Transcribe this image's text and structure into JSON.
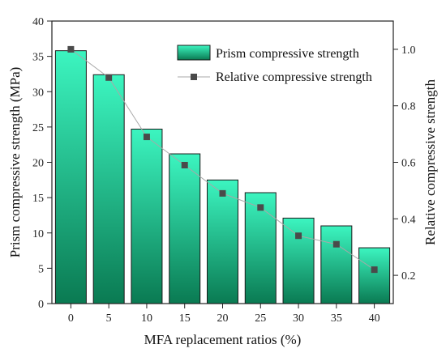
{
  "chart_data": {
    "type": "bar",
    "categories": [
      "0",
      "5",
      "10",
      "15",
      "20",
      "25",
      "30",
      "35",
      "40"
    ],
    "series": [
      {
        "name": "Prism compressive strength",
        "axis": "left",
        "type": "bar",
        "values": [
          35.8,
          32.4,
          24.7,
          21.2,
          17.5,
          15.7,
          12.1,
          11.0,
          7.9
        ]
      },
      {
        "name": "Relative compressive strength",
        "axis": "right",
        "type": "line",
        "values": [
          1.0,
          0.9,
          0.69,
          0.59,
          0.49,
          0.44,
          0.34,
          0.31,
          0.22
        ]
      }
    ],
    "xlabel": "MFA replacement ratios (%)",
    "ylabel": "Prism compressive strength (MPa)",
    "y2label": "Relative compressive strength",
    "ylim": [
      0,
      40
    ],
    "y2lim": [
      0.1,
      1.1
    ],
    "yticks": [
      "0",
      "5",
      "10",
      "15",
      "20",
      "25",
      "30",
      "35",
      "40"
    ],
    "y2ticks": [
      "0.2",
      "0.4",
      "0.6",
      "0.8",
      "1.0"
    ],
    "legend_position": "top-right",
    "grid": false,
    "colors": {
      "bar_top": "#3cf5c0",
      "bar_bottom": "#0a7a52",
      "bar_stroke": "#1a1a1a",
      "line": "#a8a8a8",
      "marker": "#4a4a4a",
      "axis": "#222222"
    }
  }
}
